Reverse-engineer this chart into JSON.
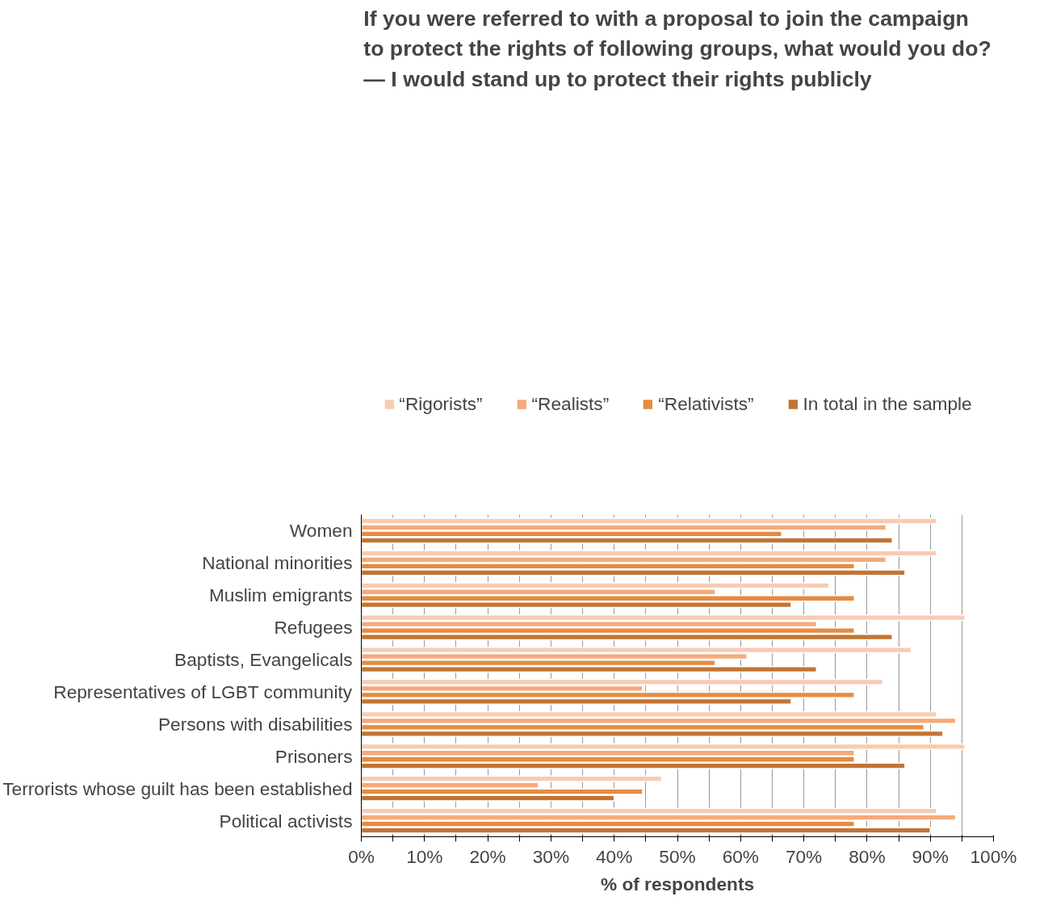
{
  "chart_data": {
    "type": "bar",
    "orientation": "horizontal",
    "title": "If you were referred to with a proposal to join the campaign\nto protect the rights of following groups, what would you do?\n— I would stand up to protect their rights publicly",
    "xlabel": "% of respondents",
    "categories": [
      "Women",
      "National minorities",
      "Muslim emigrants",
      "Refugees",
      "Baptists, Evangelicals",
      "Representatives of LGBT community",
      "Persons with disabilities",
      "Prisoners",
      "Terrorists whose guilt has been established",
      "Political activists"
    ],
    "series": [
      {
        "name": "“Rigorists”",
        "color": "#f8cbb2",
        "values": [
          91,
          91,
          74,
          95.5,
          87,
          82.5,
          91,
          95.5,
          47.5,
          91
        ]
      },
      {
        "name": "“Realists”",
        "color": "#f5aa7a",
        "values": [
          83,
          83,
          56,
          72,
          61,
          44.5,
          94,
          78,
          28,
          94
        ]
      },
      {
        "name": "“Relativists”",
        "color": "#e68b42",
        "values": [
          66.5,
          78,
          78,
          78,
          56,
          78,
          89,
          78,
          44.5,
          78
        ]
      },
      {
        "name": "In total in the sample",
        "color": "#c27434",
        "values": [
          84,
          86,
          68,
          84,
          72,
          68,
          92,
          86,
          40,
          90
        ]
      }
    ],
    "xlim": [
      0,
      100
    ],
    "xticks": [
      {
        "value": 0,
        "label": "0%"
      },
      {
        "value": 5,
        "label": null
      },
      {
        "value": 10,
        "label": "10%"
      },
      {
        "value": 15,
        "label": null
      },
      {
        "value": 20,
        "label": "20%"
      },
      {
        "value": 25,
        "label": null
      },
      {
        "value": 30,
        "label": "30%"
      },
      {
        "value": 35,
        "label": null
      },
      {
        "value": 40,
        "label": "40%"
      },
      {
        "value": 45,
        "label": null
      },
      {
        "value": 50,
        "label": "50%"
      },
      {
        "value": 55,
        "label": null
      },
      {
        "value": 60,
        "label": "60%"
      },
      {
        "value": 65,
        "label": null
      },
      {
        "value": 70,
        "label": "70%"
      },
      {
        "value": 75,
        "label": null
      },
      {
        "value": 80,
        "label": "80%"
      },
      {
        "value": 85,
        "label": null
      },
      {
        "value": 90,
        "label": "90%"
      },
      {
        "value": 95,
        "label": null
      },
      {
        "value": 100,
        "label": "100%"
      }
    ],
    "grid": "x",
    "legend": "top"
  }
}
